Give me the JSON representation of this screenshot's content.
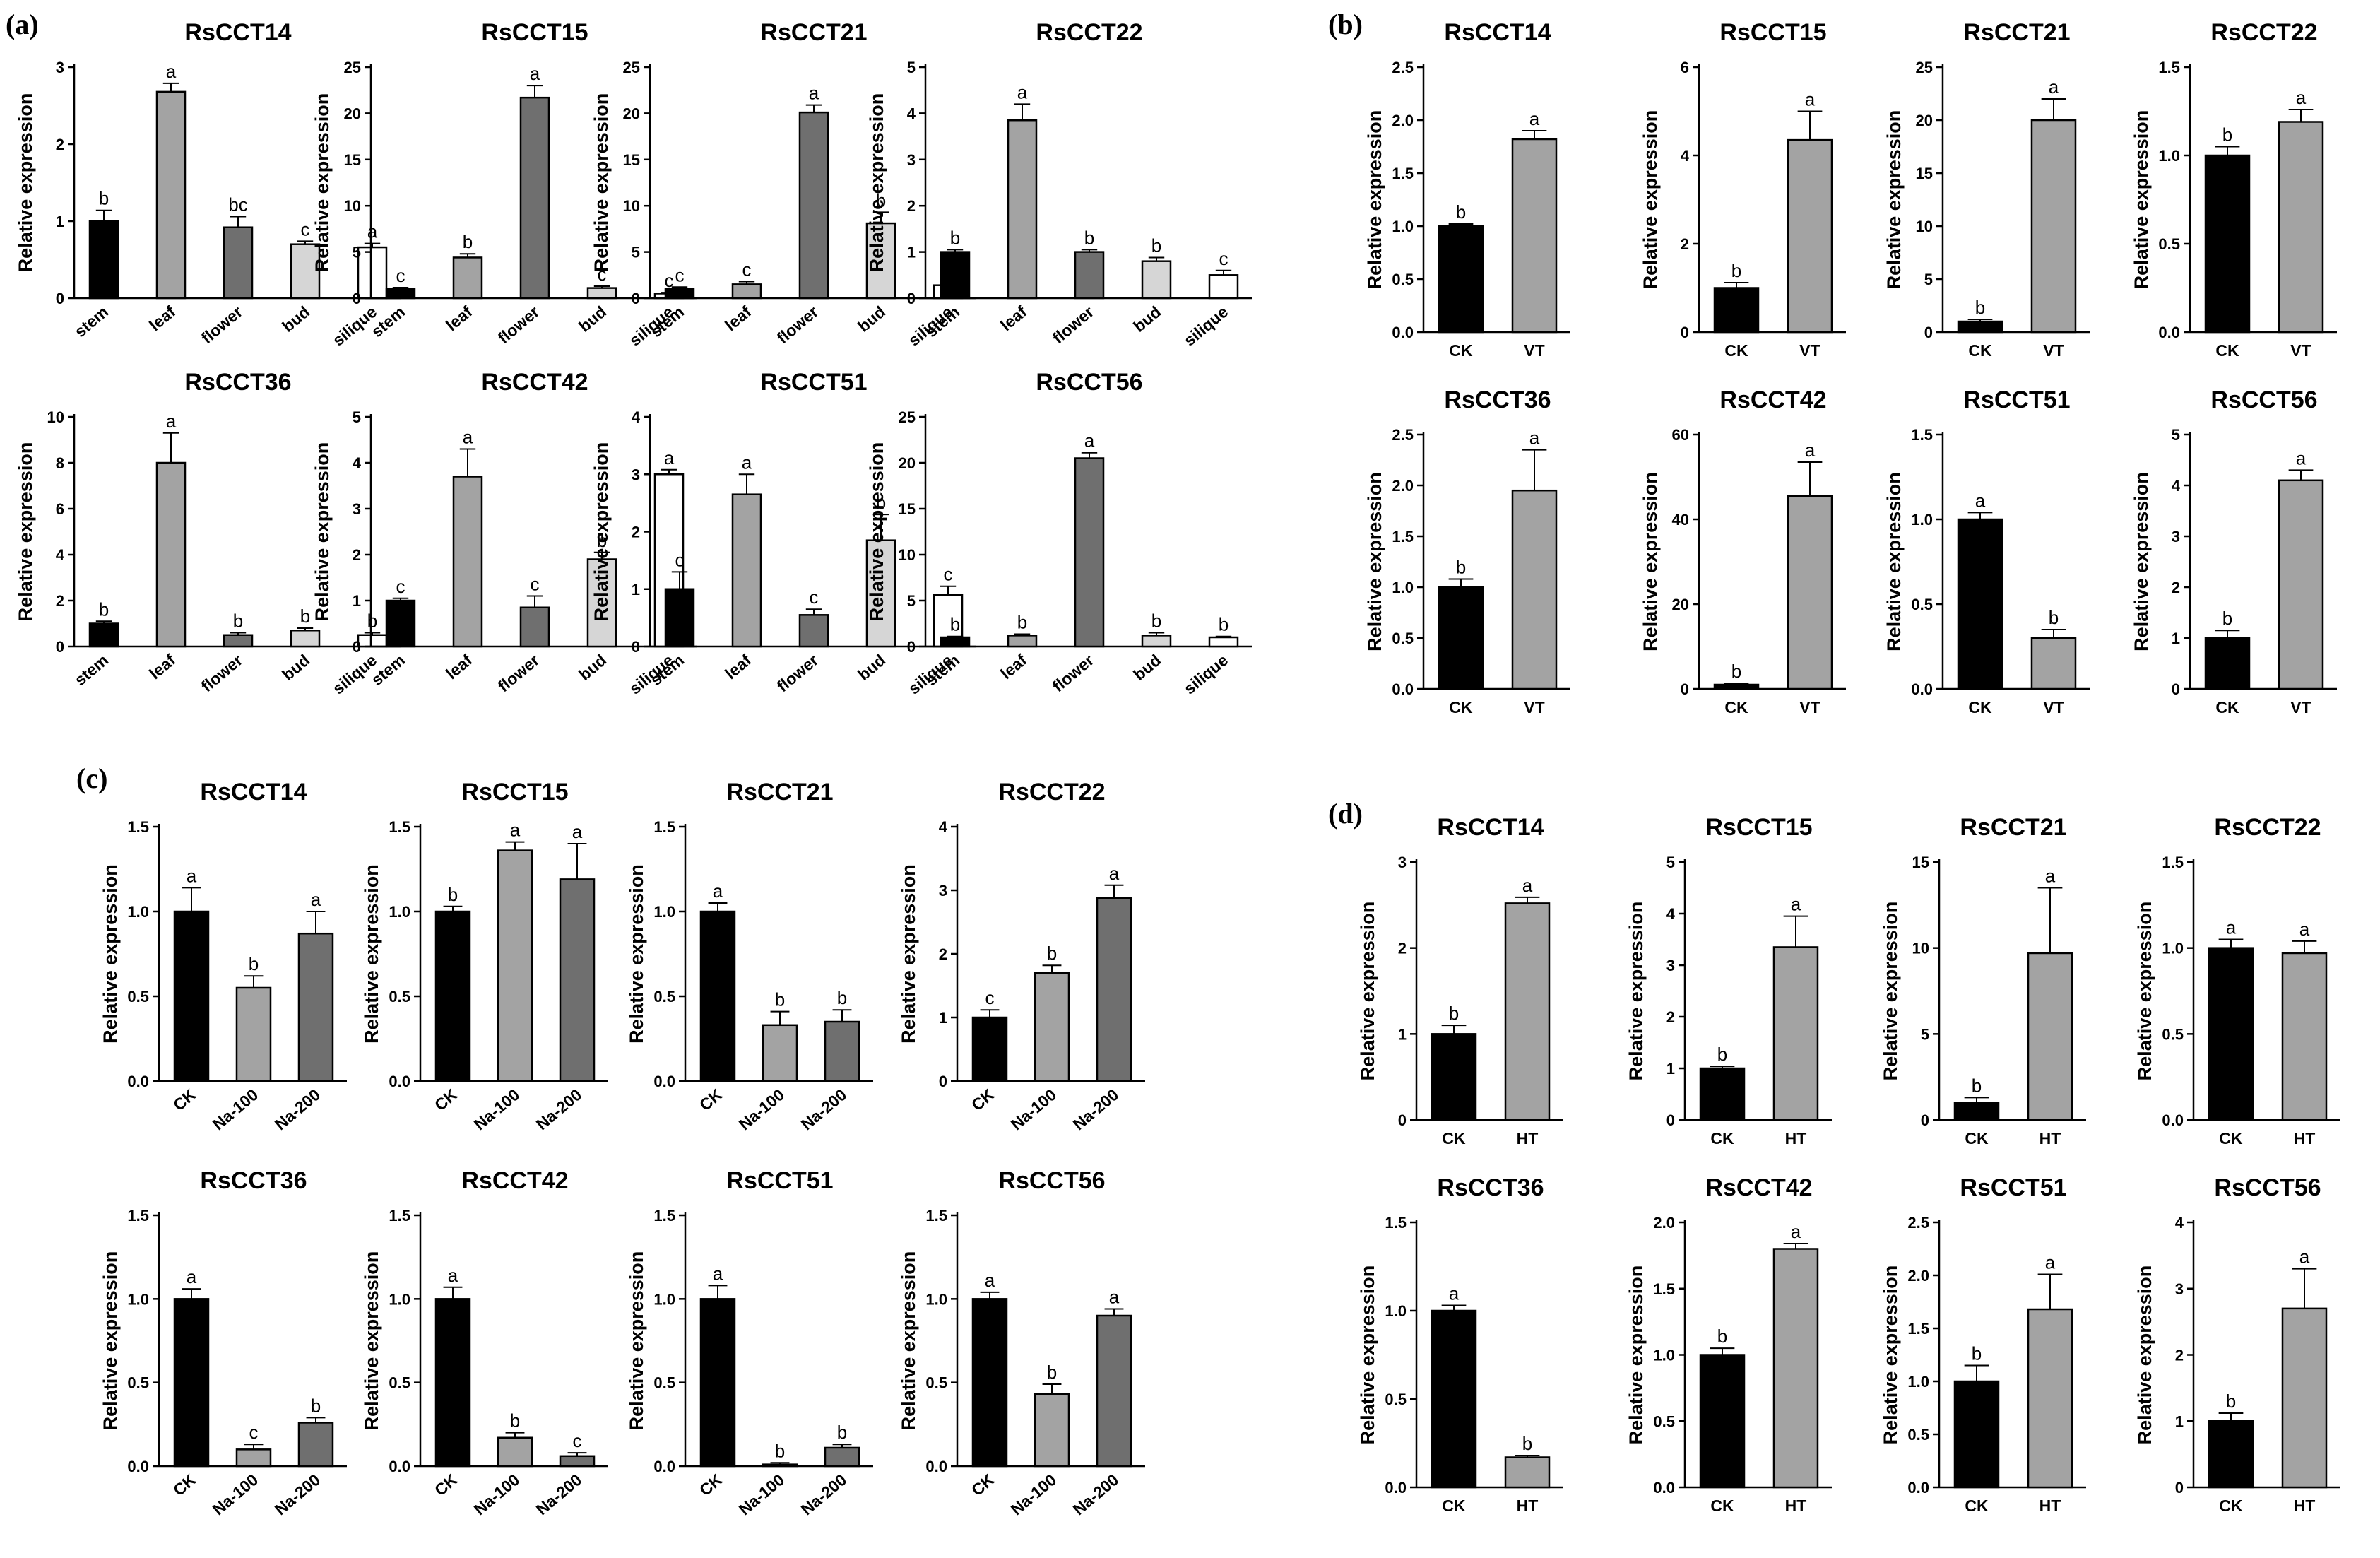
{
  "figure": {
    "panels": [
      {
        "letter": "(a)",
        "group": "a"
      },
      {
        "letter": "(b)",
        "group": "b"
      },
      {
        "letter": "(c)",
        "group": "c"
      },
      {
        "letter": "(d)",
        "group": "d"
      }
    ],
    "ylabel": "Relative expression"
  },
  "colors": {
    "black": "#000000",
    "dark": "#6f6f6f",
    "mid": "#a3a3a3",
    "light": "#d6d6d6",
    "white": "#ffffff"
  },
  "chart_data": [
    {
      "group": "a",
      "type": "bar",
      "title": "RsCCT14",
      "ylabel": "Relative expression",
      "ylim": [
        0,
        3
      ],
      "yticks": [
        0,
        1,
        2,
        3
      ],
      "categories": [
        "stem",
        "leaf",
        "flower",
        "bud",
        "silique"
      ],
      "values": [
        1.0,
        2.68,
        0.92,
        0.7,
        0.66
      ],
      "errors": [
        0.14,
        0.11,
        0.14,
        0.04,
        0.05
      ],
      "labels": [
        "b",
        "a",
        "bc",
        "c",
        "a"
      ],
      "fills": [
        "black",
        "mid",
        "dark",
        "light",
        "white"
      ]
    },
    {
      "group": "a",
      "type": "bar",
      "title": "RsCCT15",
      "ylabel": "Relative expression",
      "ylim": [
        0,
        25
      ],
      "yticks": [
        0,
        5,
        10,
        15,
        20,
        25
      ],
      "categories": [
        "stem",
        "leaf",
        "flower",
        "bud",
        "silique"
      ],
      "values": [
        1.0,
        4.4,
        21.7,
        1.1,
        0.5
      ],
      "errors": [
        0.15,
        0.4,
        1.3,
        0.2,
        0.1
      ],
      "labels": [
        "c",
        "b",
        "a",
        "c",
        "c"
      ],
      "fills": [
        "black",
        "mid",
        "dark",
        "light",
        "white"
      ]
    },
    {
      "group": "a",
      "type": "bar",
      "title": "RsCCT21",
      "ylabel": "Relative expression",
      "ylim": [
        0,
        25
      ],
      "yticks": [
        0,
        5,
        10,
        15,
        20,
        25
      ],
      "categories": [
        "stem",
        "leaf",
        "flower",
        "bud",
        "silique"
      ],
      "values": [
        1.0,
        1.5,
        20.1,
        8.1,
        1.4
      ],
      "errors": [
        0.2,
        0.3,
        0.8,
        1.2,
        0.2
      ],
      "labels": [
        "c",
        "c",
        "a",
        "b",
        "c"
      ],
      "fills": [
        "black",
        "mid",
        "dark",
        "light",
        "white"
      ]
    },
    {
      "group": "a",
      "type": "bar",
      "title": "RsCCT22",
      "ylabel": "Relative expression",
      "ylim": [
        0,
        5
      ],
      "yticks": [
        0,
        1,
        2,
        3,
        4,
        5
      ],
      "categories": [
        "stem",
        "leaf",
        "flower",
        "bud",
        "silique"
      ],
      "values": [
        1.0,
        3.85,
        1.0,
        0.8,
        0.5
      ],
      "errors": [
        0.05,
        0.35,
        0.05,
        0.08,
        0.1
      ],
      "labels": [
        "b",
        "a",
        "b",
        "b",
        "c"
      ],
      "fills": [
        "black",
        "mid",
        "dark",
        "light",
        "white"
      ]
    },
    {
      "group": "a",
      "type": "bar",
      "title": "RsCCT36",
      "ylabel": "Relative expression",
      "ylim": [
        0,
        10
      ],
      "yticks": [
        0,
        2,
        4,
        6,
        8,
        10
      ],
      "categories": [
        "stem",
        "leaf",
        "flower",
        "bud",
        "silique"
      ],
      "values": [
        1.0,
        8.0,
        0.5,
        0.7,
        0.5
      ],
      "errors": [
        0.1,
        1.3,
        0.1,
        0.1,
        0.1
      ],
      "labels": [
        "b",
        "a",
        "b",
        "b",
        "b"
      ],
      "fills": [
        "black",
        "mid",
        "dark",
        "light",
        "white"
      ]
    },
    {
      "group": "a",
      "type": "bar",
      "title": "RsCCT42",
      "ylabel": "Relative expression",
      "ylim": [
        0,
        5
      ],
      "yticks": [
        0,
        1,
        2,
        3,
        4,
        5
      ],
      "categories": [
        "stem",
        "leaf",
        "flower",
        "bud",
        "silique"
      ],
      "values": [
        1.0,
        3.7,
        0.85,
        1.9,
        3.75
      ],
      "errors": [
        0.05,
        0.6,
        0.25,
        0.15,
        0.1
      ],
      "labels": [
        "c",
        "a",
        "c",
        "b",
        "a"
      ],
      "fills": [
        "black",
        "mid",
        "dark",
        "light",
        "white"
      ]
    },
    {
      "group": "a",
      "type": "bar",
      "title": "RsCCT51",
      "ylabel": "Relative expression",
      "ylim": [
        0,
        4
      ],
      "yticks": [
        0,
        1,
        2,
        3,
        4
      ],
      "categories": [
        "stem",
        "leaf",
        "flower",
        "bud",
        "silique"
      ],
      "values": [
        1.0,
        2.65,
        0.55,
        1.85,
        0.9
      ],
      "errors": [
        0.3,
        0.35,
        0.1,
        0.45,
        0.15
      ],
      "labels": [
        "c",
        "a",
        "c",
        "b",
        "c"
      ],
      "fills": [
        "black",
        "mid",
        "dark",
        "light",
        "white"
      ]
    },
    {
      "group": "a",
      "type": "bar",
      "title": "RsCCT56",
      "ylabel": "Relative expression",
      "ylim": [
        0,
        25
      ],
      "yticks": [
        0,
        5,
        10,
        15,
        20,
        25
      ],
      "categories": [
        "stem",
        "leaf",
        "flower",
        "bud",
        "silique"
      ],
      "values": [
        1.0,
        1.2,
        20.5,
        1.2,
        1.0
      ],
      "errors": [
        0.1,
        0.15,
        0.6,
        0.3,
        0.1
      ],
      "labels": [
        "b",
        "b",
        "a",
        "b",
        "b"
      ],
      "fills": [
        "black",
        "mid",
        "dark",
        "light",
        "white"
      ]
    },
    {
      "group": "b",
      "type": "bar",
      "title": "RsCCT14",
      "ylabel": "Relative expression",
      "ylim": [
        0,
        2.5
      ],
      "yticks": [
        0.0,
        0.5,
        1.0,
        1.5,
        2.0,
        2.5
      ],
      "categories": [
        "CK",
        "VT"
      ],
      "values": [
        1.0,
        1.82
      ],
      "errors": [
        0.02,
        0.08
      ],
      "labels": [
        "b",
        "a"
      ],
      "fills": [
        "black",
        "mid"
      ]
    },
    {
      "group": "b",
      "type": "bar",
      "title": "RsCCT15",
      "ylabel": "Relative expression",
      "ylim": [
        0,
        6
      ],
      "yticks": [
        0,
        2,
        4,
        6
      ],
      "categories": [
        "CK",
        "VT"
      ],
      "values": [
        1.0,
        4.35
      ],
      "errors": [
        0.12,
        0.65
      ],
      "labels": [
        "b",
        "a"
      ],
      "fills": [
        "black",
        "mid"
      ]
    },
    {
      "group": "b",
      "type": "bar",
      "title": "RsCCT21",
      "ylabel": "Relative expression",
      "ylim": [
        0,
        25
      ],
      "yticks": [
        0,
        5,
        10,
        15,
        20,
        25
      ],
      "categories": [
        "CK",
        "VT"
      ],
      "values": [
        1.0,
        20.0
      ],
      "errors": [
        0.2,
        2.0
      ],
      "labels": [
        "b",
        "a"
      ],
      "fills": [
        "black",
        "mid"
      ]
    },
    {
      "group": "b",
      "type": "bar",
      "title": "RsCCT22",
      "ylabel": "Relative expression",
      "ylim": [
        0,
        1.5
      ],
      "yticks": [
        0.0,
        0.5,
        1.0,
        1.5
      ],
      "categories": [
        "CK",
        "VT"
      ],
      "values": [
        1.0,
        1.19
      ],
      "errors": [
        0.05,
        0.07
      ],
      "labels": [
        "b",
        "a"
      ],
      "fills": [
        "black",
        "mid"
      ]
    },
    {
      "group": "b",
      "type": "bar",
      "title": "RsCCT36",
      "ylabel": "Relative expression",
      "ylim": [
        0,
        2.5
      ],
      "yticks": [
        0.0,
        0.5,
        1.0,
        1.5,
        2.0,
        2.5
      ],
      "categories": [
        "CK",
        "VT"
      ],
      "values": [
        1.0,
        1.95
      ],
      "errors": [
        0.08,
        0.4
      ],
      "labels": [
        "b",
        "a"
      ],
      "fills": [
        "black",
        "mid"
      ]
    },
    {
      "group": "b",
      "type": "bar",
      "title": "RsCCT42",
      "ylabel": "Relative expression",
      "ylim": [
        0,
        60
      ],
      "yticks": [
        0,
        20,
        40,
        60
      ],
      "categories": [
        "CK",
        "VT"
      ],
      "values": [
        1.0,
        45.5
      ],
      "errors": [
        0.3,
        8.0
      ],
      "labels": [
        "b",
        "a"
      ],
      "fills": [
        "black",
        "mid"
      ]
    },
    {
      "group": "b",
      "type": "bar",
      "title": "RsCCT51",
      "ylabel": "Relative expression",
      "ylim": [
        0,
        1.5
      ],
      "yticks": [
        0.0,
        0.5,
        1.0,
        1.5
      ],
      "categories": [
        "CK",
        "VT"
      ],
      "values": [
        1.0,
        0.3
      ],
      "errors": [
        0.04,
        0.05
      ],
      "labels": [
        "a",
        "b"
      ],
      "fills": [
        "black",
        "mid"
      ]
    },
    {
      "group": "b",
      "type": "bar",
      "title": "RsCCT56",
      "ylabel": "Relative expression",
      "ylim": [
        0,
        5
      ],
      "yticks": [
        0,
        1,
        2,
        3,
        4,
        5
      ],
      "categories": [
        "CK",
        "VT"
      ],
      "values": [
        1.0,
        4.1
      ],
      "errors": [
        0.15,
        0.2
      ],
      "labels": [
        "b",
        "a"
      ],
      "fills": [
        "black",
        "mid"
      ]
    },
    {
      "group": "c",
      "type": "bar",
      "title": "RsCCT14",
      "ylabel": "Relative expression",
      "ylim": [
        0,
        1.5
      ],
      "yticks": [
        0.0,
        0.5,
        1.0,
        1.5
      ],
      "categories": [
        "CK",
        "Na-100",
        "Na-200"
      ],
      "values": [
        1.0,
        0.55,
        0.87
      ],
      "errors": [
        0.14,
        0.07,
        0.13
      ],
      "labels": [
        "a",
        "b",
        "a"
      ],
      "fills": [
        "black",
        "mid",
        "dark"
      ]
    },
    {
      "group": "c",
      "type": "bar",
      "title": "RsCCT15",
      "ylabel": "Relative expression",
      "ylim": [
        0,
        1.5
      ],
      "yticks": [
        0.0,
        0.5,
        1.0,
        1.5
      ],
      "categories": [
        "CK",
        "Na-100",
        "Na-200"
      ],
      "values": [
        1.0,
        1.36,
        1.19
      ],
      "errors": [
        0.03,
        0.05,
        0.21
      ],
      "labels": [
        "b",
        "a",
        "a"
      ],
      "fills": [
        "black",
        "mid",
        "dark"
      ]
    },
    {
      "group": "c",
      "type": "bar",
      "title": "RsCCT21",
      "ylabel": "Relative expression",
      "ylim": [
        0,
        1.5
      ],
      "yticks": [
        0.0,
        0.5,
        1.0,
        1.5
      ],
      "categories": [
        "CK",
        "Na-100",
        "Na-200"
      ],
      "values": [
        1.0,
        0.33,
        0.35
      ],
      "errors": [
        0.05,
        0.08,
        0.07
      ],
      "labels": [
        "a",
        "b",
        "b"
      ],
      "fills": [
        "black",
        "mid",
        "dark"
      ]
    },
    {
      "group": "c",
      "type": "bar",
      "title": "RsCCT22",
      "ylabel": "Relative expression",
      "ylim": [
        0,
        4
      ],
      "yticks": [
        0,
        1,
        2,
        3,
        4
      ],
      "categories": [
        "CK",
        "Na-100",
        "Na-200"
      ],
      "values": [
        1.0,
        1.7,
        2.88
      ],
      "errors": [
        0.12,
        0.12,
        0.2
      ],
      "labels": [
        "c",
        "b",
        "a"
      ],
      "fills": [
        "black",
        "mid",
        "dark"
      ]
    },
    {
      "group": "c",
      "type": "bar",
      "title": "RsCCT36",
      "ylabel": "Relative expression",
      "ylim": [
        0,
        1.5
      ],
      "yticks": [
        0.0,
        0.5,
        1.0,
        1.5
      ],
      "categories": [
        "CK",
        "Na-100",
        "Na-200"
      ],
      "values": [
        1.0,
        0.1,
        0.26
      ],
      "errors": [
        0.06,
        0.03,
        0.03
      ],
      "labels": [
        "a",
        "c",
        "b"
      ],
      "fills": [
        "black",
        "mid",
        "dark"
      ]
    },
    {
      "group": "c",
      "type": "bar",
      "title": "RsCCT42",
      "ylabel": "Relative expression",
      "ylim": [
        0,
        1.5
      ],
      "yticks": [
        0.0,
        0.5,
        1.0,
        1.5
      ],
      "categories": [
        "CK",
        "Na-100",
        "Na-200"
      ],
      "values": [
        1.0,
        0.17,
        0.06
      ],
      "errors": [
        0.07,
        0.03,
        0.02
      ],
      "labels": [
        "a",
        "b",
        "c"
      ],
      "fills": [
        "black",
        "mid",
        "dark"
      ]
    },
    {
      "group": "c",
      "type": "bar",
      "title": "RsCCT51",
      "ylabel": "Relative expression",
      "ylim": [
        0,
        1.5
      ],
      "yticks": [
        0.0,
        0.5,
        1.0,
        1.5
      ],
      "categories": [
        "CK",
        "Na-100",
        "Na-200"
      ],
      "values": [
        1.0,
        0.01,
        0.11
      ],
      "errors": [
        0.08,
        0.01,
        0.02
      ],
      "labels": [
        "a",
        "b",
        "b"
      ],
      "fills": [
        "black",
        "mid",
        "dark"
      ]
    },
    {
      "group": "c",
      "type": "bar",
      "title": "RsCCT56",
      "ylabel": "Relative expression",
      "ylim": [
        0,
        1.5
      ],
      "yticks": [
        0.0,
        0.5,
        1.0,
        1.5
      ],
      "categories": [
        "CK",
        "Na-100",
        "Na-200"
      ],
      "values": [
        1.0,
        0.43,
        0.9
      ],
      "errors": [
        0.04,
        0.06,
        0.04
      ],
      "labels": [
        "a",
        "b",
        "a"
      ],
      "fills": [
        "black",
        "mid",
        "dark"
      ]
    },
    {
      "group": "d",
      "type": "bar",
      "title": "RsCCT14",
      "ylabel": "Relative expression",
      "ylim": [
        0,
        3
      ],
      "yticks": [
        0,
        1,
        2,
        3
      ],
      "categories": [
        "CK",
        "HT"
      ],
      "values": [
        1.0,
        2.52
      ],
      "errors": [
        0.1,
        0.07
      ],
      "labels": [
        "b",
        "a"
      ],
      "fills": [
        "black",
        "mid"
      ]
    },
    {
      "group": "d",
      "type": "bar",
      "title": "RsCCT15",
      "ylabel": "Relative expression",
      "ylim": [
        0,
        5
      ],
      "yticks": [
        0,
        1,
        2,
        3,
        4,
        5
      ],
      "categories": [
        "CK",
        "HT"
      ],
      "values": [
        1.0,
        3.35
      ],
      "errors": [
        0.04,
        0.6
      ],
      "labels": [
        "b",
        "a"
      ],
      "fills": [
        "black",
        "mid"
      ]
    },
    {
      "group": "d",
      "type": "bar",
      "title": "RsCCT21",
      "ylabel": "Relative expression",
      "ylim": [
        0,
        15
      ],
      "yticks": [
        0,
        5,
        10,
        15
      ],
      "categories": [
        "CK",
        "HT"
      ],
      "values": [
        1.0,
        9.7
      ],
      "errors": [
        0.3,
        3.8
      ],
      "labels": [
        "b",
        "a"
      ],
      "fills": [
        "black",
        "mid"
      ]
    },
    {
      "group": "d",
      "type": "bar",
      "title": "RsCCT22",
      "ylabel": "Relative expression",
      "ylim": [
        0,
        1.5
      ],
      "yticks": [
        0.0,
        0.5,
        1.0,
        1.5
      ],
      "categories": [
        "CK",
        "HT"
      ],
      "values": [
        1.0,
        0.97
      ],
      "errors": [
        0.05,
        0.07
      ],
      "labels": [
        "a",
        "a"
      ],
      "fills": [
        "black",
        "mid"
      ]
    },
    {
      "group": "d",
      "type": "bar",
      "title": "RsCCT36",
      "ylabel": "Relative expression",
      "ylim": [
        0,
        1.5
      ],
      "yticks": [
        0.0,
        0.5,
        1.0,
        1.5
      ],
      "categories": [
        "CK",
        "HT"
      ],
      "values": [
        1.0,
        0.17
      ],
      "errors": [
        0.03,
        0.01
      ],
      "labels": [
        "a",
        "b"
      ],
      "fills": [
        "black",
        "mid"
      ]
    },
    {
      "group": "d",
      "type": "bar",
      "title": "RsCCT42",
      "ylabel": "Relative expression",
      "ylim": [
        0,
        2.0
      ],
      "yticks": [
        0.0,
        0.5,
        1.0,
        1.5,
        2.0
      ],
      "categories": [
        "CK",
        "HT"
      ],
      "values": [
        1.0,
        1.8
      ],
      "errors": [
        0.05,
        0.04
      ],
      "labels": [
        "b",
        "a"
      ],
      "fills": [
        "black",
        "mid"
      ]
    },
    {
      "group": "d",
      "type": "bar",
      "title": "RsCCT51",
      "ylabel": "Relative expression",
      "ylim": [
        0,
        2.5
      ],
      "yticks": [
        0.0,
        0.5,
        1.0,
        1.5,
        2.0,
        2.5
      ],
      "categories": [
        "CK",
        "HT"
      ],
      "values": [
        1.0,
        1.68
      ],
      "errors": [
        0.15,
        0.33
      ],
      "labels": [
        "b",
        "a"
      ],
      "fills": [
        "black",
        "mid"
      ]
    },
    {
      "group": "d",
      "type": "bar",
      "title": "RsCCT56",
      "ylabel": "Relative expression",
      "ylim": [
        0,
        4
      ],
      "yticks": [
        0,
        1,
        2,
        3,
        4
      ],
      "categories": [
        "CK",
        "HT"
      ],
      "values": [
        1.0,
        2.7
      ],
      "errors": [
        0.12,
        0.6
      ],
      "labels": [
        "b",
        "a"
      ],
      "fills": [
        "black",
        "mid"
      ]
    }
  ]
}
